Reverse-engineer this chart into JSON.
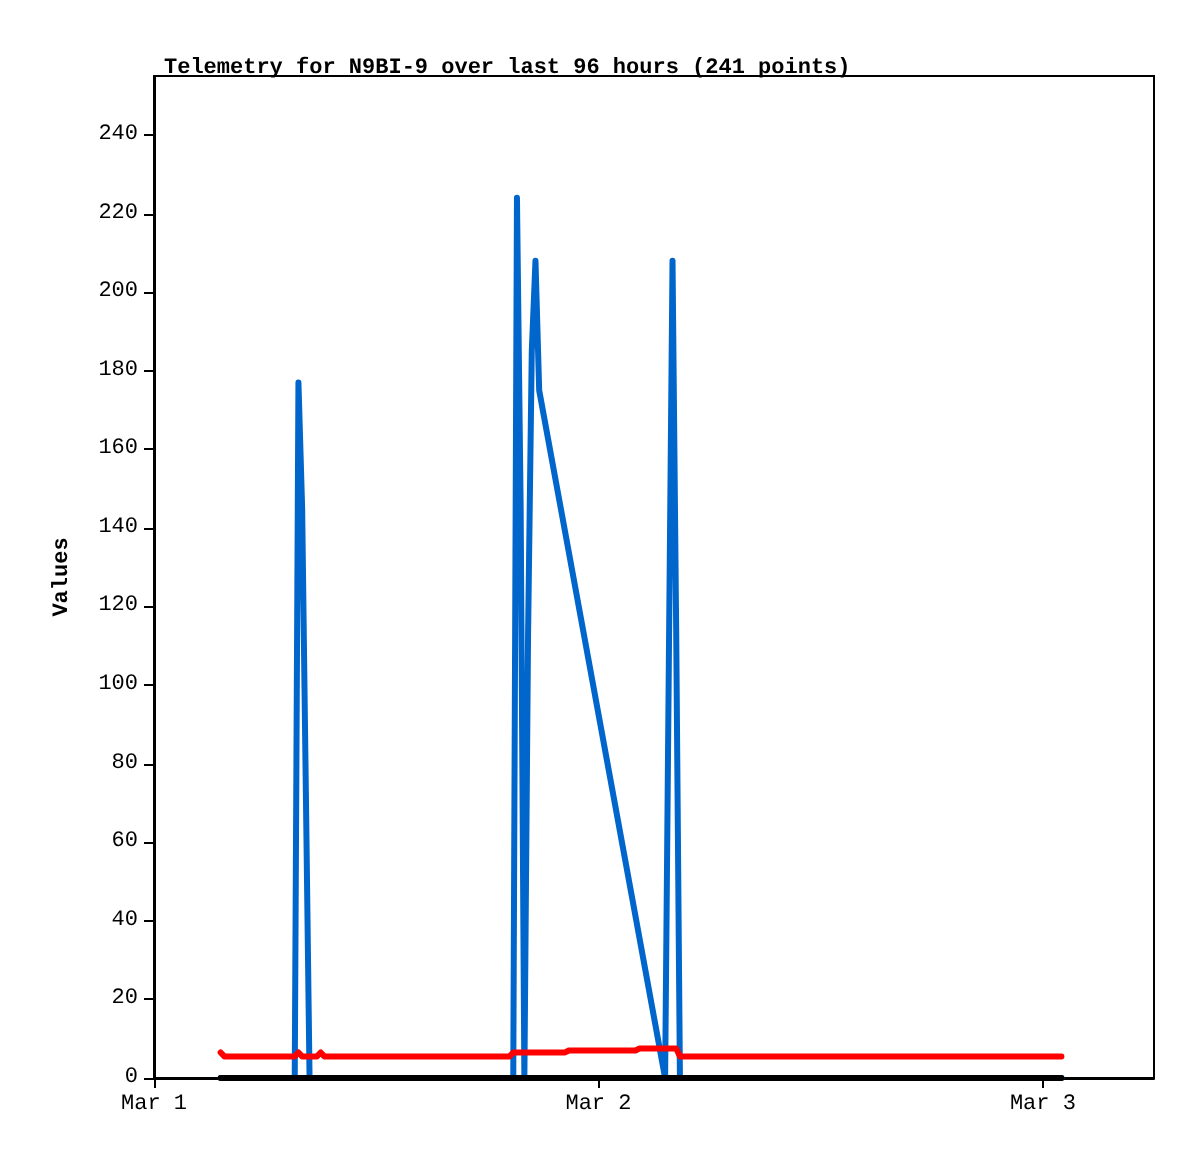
{
  "chart_data": {
    "type": "line",
    "title": "Telemetry for N9BI-9 over last 96 hours (241 points)",
    "ylabel": "Values",
    "xlim": [
      "--03-01T00:00",
      "--03-03T06:00"
    ],
    "xticks": [
      {
        "value": "--03-01T00:00",
        "label": "Mar 1"
      },
      {
        "value": "--03-02T00:00",
        "label": "Mar 2"
      },
      {
        "value": "--03-03T00:00",
        "label": "Mar 3"
      }
    ],
    "ylim": [
      0,
      255
    ],
    "yticks": [
      0,
      20,
      40,
      60,
      80,
      100,
      120,
      140,
      160,
      180,
      200,
      220,
      240
    ],
    "grid": false,
    "marker": "none",
    "line_style": "solid",
    "series": [
      {
        "color": "#0066cc",
        "x": [
          "--03-01T03:36",
          "--03-01T07:36",
          "--03-01T07:48",
          "--03-01T08:00",
          "--03-01T08:12",
          "--03-01T08:24",
          "--03-01T19:24",
          "--03-01T19:36",
          "--03-01T19:48",
          "--03-01T20:00",
          "--03-01T20:12",
          "--03-01T20:24",
          "--03-01T20:36",
          "--03-01T20:48",
          "--03-02T03:36",
          "--03-02T03:48",
          "--03-02T04:00",
          "--03-02T04:12",
          "--03-02T04:24",
          "--03-03T01:00"
        ],
        "values": [
          0,
          0,
          177,
          145,
          73,
          0,
          0,
          224,
          145,
          0,
          113,
          185,
          208,
          175,
          0,
          105,
          208,
          113,
          0,
          0
        ]
      },
      {
        "color": "#ff0000",
        "x": [
          "--03-01T03:36",
          "--03-01T03:48",
          "--03-01T07:36",
          "--03-01T07:48",
          "--03-01T08:00",
          "--03-01T08:48",
          "--03-01T09:00",
          "--03-01T09:12",
          "--03-01T19:12",
          "--03-01T19:24",
          "--03-01T22:12",
          "--03-01T22:24",
          "--03-02T02:00",
          "--03-02T02:12",
          "--03-02T04:12",
          "--03-02T04:24",
          "--03-03T01:00"
        ],
        "values": [
          6.5,
          5.5,
          5.5,
          6.5,
          5.5,
          5.5,
          6.5,
          5.5,
          5.5,
          6.5,
          6.5,
          7,
          7,
          7.5,
          7.5,
          5.5,
          5.5
        ]
      },
      {
        "color": "#000000",
        "x": [
          "--03-01T03:36",
          "--03-03T01:00"
        ],
        "values": [
          0,
          0
        ]
      }
    ]
  }
}
